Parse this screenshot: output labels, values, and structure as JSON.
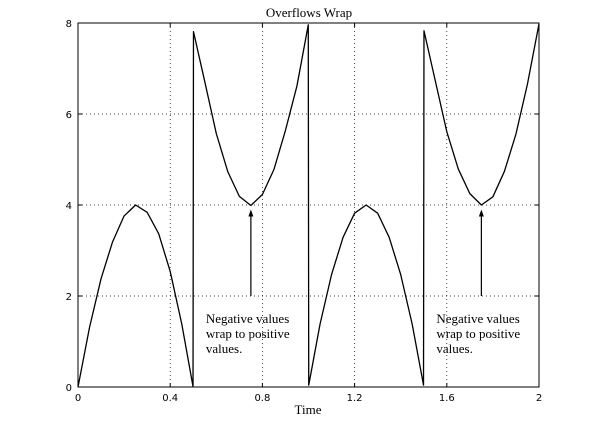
{
  "chart_data": {
    "type": "line",
    "title": "Overflows Wrap",
    "xlabel": "Time",
    "ylabel": "",
    "xlim": [
      0,
      2
    ],
    "ylim": [
      0,
      8
    ],
    "grid": true,
    "legend": "none",
    "x_ticks": [
      0,
      0.4,
      0.8,
      1.2,
      1.6,
      2
    ],
    "x_tick_labels": [
      "0",
      "0.4",
      "0.8",
      "1.2",
      "1.6",
      "2"
    ],
    "y_ticks": [
      0,
      2,
      4,
      6,
      8
    ],
    "y_tick_labels": [
      "0",
      "2",
      "4",
      "6",
      "8"
    ],
    "series": [
      {
        "color": "#000000",
        "x": [
          0,
          0.05,
          0.1,
          0.15,
          0.2,
          0.25,
          0.3,
          0.35,
          0.4,
          0.45,
          0.499,
          0.501,
          0.55,
          0.6,
          0.65,
          0.7,
          0.75,
          0.8,
          0.85,
          0.9,
          0.95,
          0.999,
          1.001,
          1.05,
          1.1,
          1.15,
          1.2,
          1.25,
          1.3,
          1.35,
          1.4,
          1.45,
          1.499,
          1.501,
          1.55,
          1.6,
          1.65,
          1.7,
          1.75,
          1.8,
          1.85,
          1.9,
          1.95,
          2.0
        ],
        "y": [
          0,
          1.31,
          2.38,
          3.19,
          3.76,
          4.0,
          3.84,
          3.37,
          2.54,
          1.39,
          0.01,
          7.81,
          6.71,
          5.57,
          4.73,
          4.19,
          3.99,
          4.23,
          4.78,
          5.64,
          6.62,
          7.96,
          0.04,
          1.38,
          2.47,
          3.29,
          3.82,
          4.0,
          3.82,
          3.29,
          2.47,
          1.38,
          0.04,
          7.83,
          6.73,
          5.61,
          4.79,
          4.25,
          4.0,
          4.18,
          4.74,
          5.56,
          6.66,
          7.98
        ]
      }
    ],
    "annotations": [
      {
        "lines": [
          "Negative values",
          "wrap to positive",
          "values."
        ],
        "arrow_x": 0.75,
        "arrow_from_y": 2.0,
        "arrow_to_y": 3.9
      },
      {
        "lines": [
          "Negative values",
          "wrap to positive",
          "values."
        ],
        "arrow_x": 1.75,
        "arrow_from_y": 2.0,
        "arrow_to_y": 3.9
      }
    ]
  }
}
